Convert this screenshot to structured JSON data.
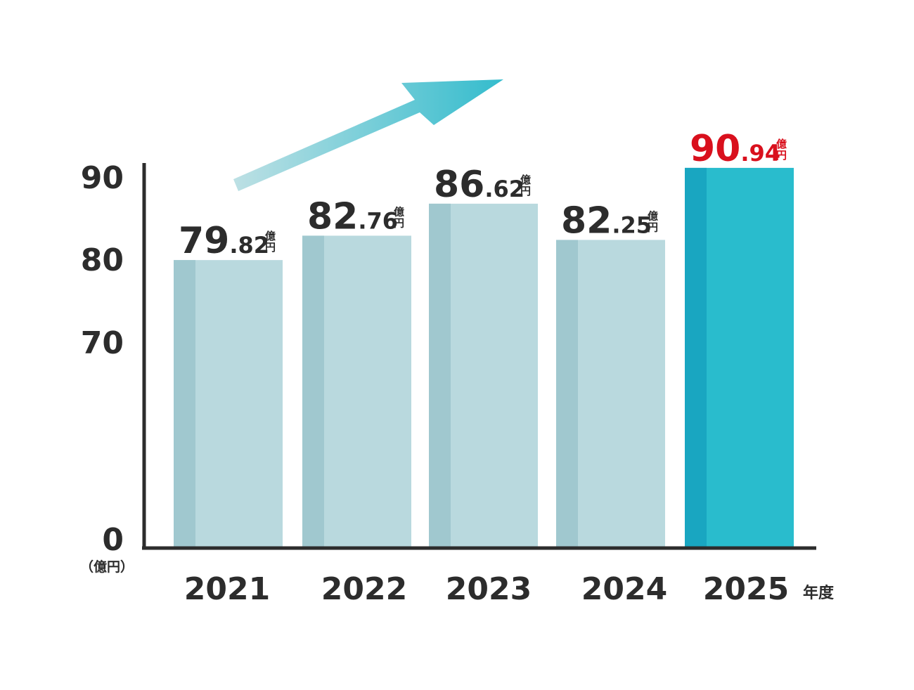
{
  "chart_data": {
    "type": "bar",
    "categories": [
      "2021",
      "2022",
      "2023",
      "2024",
      "2025"
    ],
    "values": [
      79.82,
      82.76,
      86.62,
      82.25,
      90.94
    ],
    "value_labels": [
      {
        "int": "79",
        "dec": ".82",
        "unit_top": "億",
        "unit_bottom": "円"
      },
      {
        "int": "82",
        "dec": ".76",
        "unit_top": "億",
        "unit_bottom": "円"
      },
      {
        "int": "86",
        "dec": ".62",
        "unit_top": "億",
        "unit_bottom": "円"
      },
      {
        "int": "82",
        "dec": ".25",
        "unit_top": "億",
        "unit_bottom": "円"
      },
      {
        "int": "90",
        "dec": ".94",
        "unit_top": "億",
        "unit_bottom": "円"
      }
    ],
    "highlight_index": 4,
    "y_ticks": [
      "0",
      "70",
      "80",
      "90"
    ],
    "y_tick_values": [
      0,
      70,
      80,
      90
    ],
    "y_unit_label": "（億円）",
    "x_unit_label": "年度",
    "axis_break": true,
    "colors": {
      "bar": "#b9d9de",
      "bar_shade": "#a0c8cf",
      "highlight_bar": "#29bccd",
      "highlight_shade": "#19a6c1",
      "highlight_label": "#d9101d",
      "text": "#2c2c2c",
      "axis": "#2c2c2c",
      "arrow_start": "#bde0e4",
      "arrow_end": "#34bccd"
    }
  }
}
